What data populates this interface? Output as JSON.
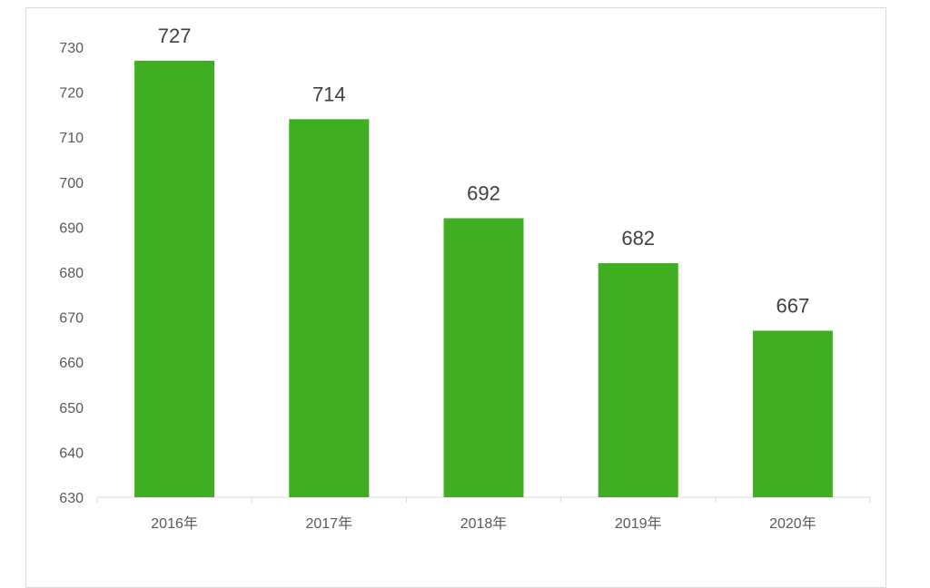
{
  "chart_data": {
    "type": "bar",
    "categories": [
      "2016年",
      "2017年",
      "2018年",
      "2019年",
      "2020年"
    ],
    "values": [
      727,
      714,
      692,
      682,
      667
    ],
    "title": "",
    "xlabel": "",
    "ylabel": "",
    "ylim": [
      630,
      730
    ],
    "yticks": [
      630,
      640,
      650,
      660,
      670,
      680,
      690,
      700,
      710,
      720,
      730
    ],
    "grid": false,
    "legend": "none",
    "bar_color": "#3fae20",
    "data_labels": true
  }
}
